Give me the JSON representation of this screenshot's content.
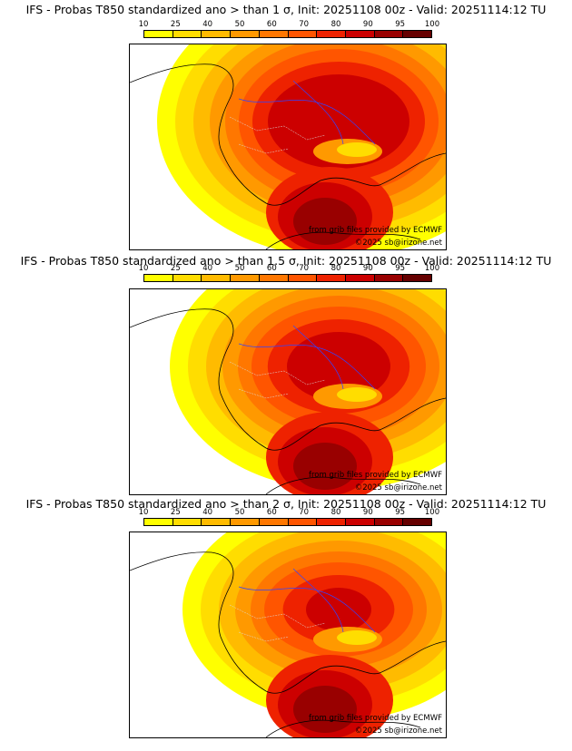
{
  "colorbar": {
    "ticks": [
      "10",
      "25",
      "40",
      "50",
      "60",
      "70",
      "80",
      "90",
      "95",
      "100"
    ],
    "colors": [
      "#ffff00",
      "#ffdd00",
      "#ffbb00",
      "#ff9900",
      "#ff7700",
      "#ff5500",
      "#ee2200",
      "#cc0000",
      "#990000",
      "#660000"
    ]
  },
  "credits": {
    "source": "from grib files provided by ECMWF",
    "copyright": "©2025 sb@irizone.net"
  },
  "panels": [
    {
      "title": "IFS - Probas T850  standardized ano > than 1 σ, Init: 20251108 00z - Valid: 20251114:12 TU",
      "threshold": 1
    },
    {
      "title": "IFS - Probas T850  standardized ano > than 1.5 σ, Init: 20251108 00z - Valid: 20251114:12 TU",
      "threshold": 1.5
    },
    {
      "title": "IFS - Probas T850  standardized ano > than 2 σ, Init: 20251108 00z - Valid: 20251114:12 TU",
      "threshold": 2
    }
  ]
}
